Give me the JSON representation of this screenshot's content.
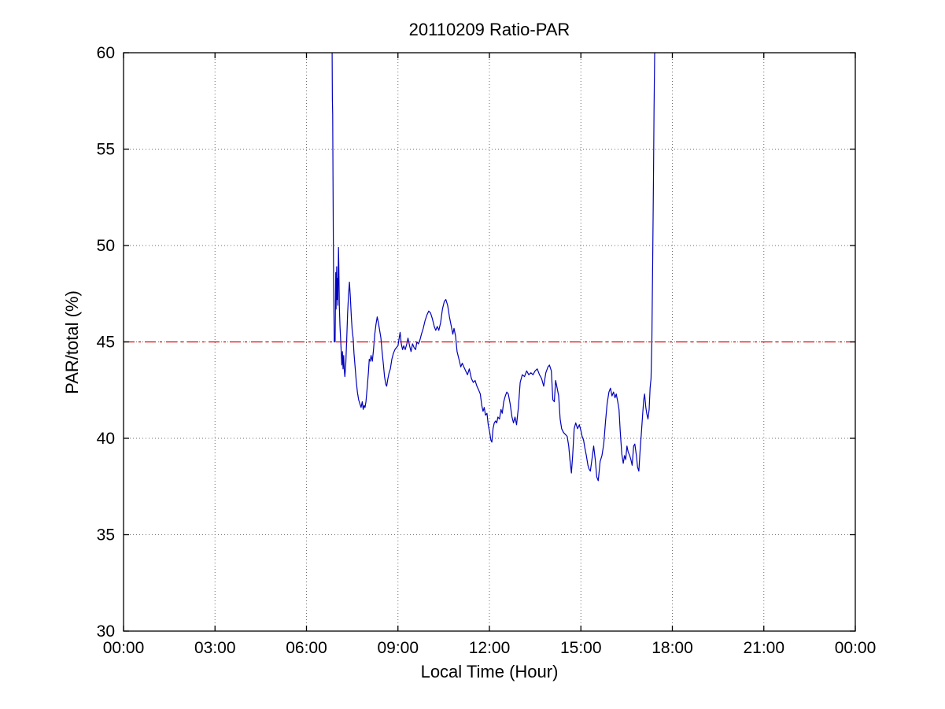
{
  "figure": {
    "background": "#ffffff",
    "axis_color": "#000000",
    "grid_color": "#6e6e6e"
  },
  "chart_data": {
    "type": "line",
    "title": "20110209 Ratio-PAR",
    "xlabel": "Local Time (Hour)",
    "ylabel": "PAR/total (%)",
    "xlim": [
      0,
      24
    ],
    "ylim": [
      30,
      60
    ],
    "x_tick_hours": [
      0,
      3,
      6,
      9,
      12,
      15,
      18,
      21,
      24
    ],
    "x_tick_labels": [
      "00:00",
      "03:00",
      "06:00",
      "09:00",
      "12:00",
      "15:00",
      "18:00",
      "21:00",
      "00:00"
    ],
    "y_ticks": [
      30,
      35,
      40,
      45,
      50,
      55,
      60
    ],
    "grid": "dotted",
    "legend": "none",
    "series": [
      {
        "name": "par-total-ratio",
        "color": "#0000bb",
        "style": "solid",
        "points": [
          [
            6.84,
            60
          ],
          [
            6.85,
            57.6
          ],
          [
            6.86,
            56.8
          ],
          [
            6.87,
            53.5
          ],
          [
            6.88,
            50.5
          ],
          [
            6.89,
            48.0
          ],
          [
            6.9,
            46.6
          ],
          [
            6.91,
            45.0
          ],
          [
            6.94,
            45.0
          ],
          [
            6.96,
            48.6
          ],
          [
            6.97,
            46.7
          ],
          [
            6.99,
            48.9
          ],
          [
            7.0,
            47.2
          ],
          [
            7.02,
            48.3
          ],
          [
            7.03,
            46.9
          ],
          [
            7.05,
            49.9
          ],
          [
            7.06,
            49.0
          ],
          [
            7.08,
            46.8
          ],
          [
            7.1,
            45.8
          ],
          [
            7.13,
            44.8
          ],
          [
            7.16,
            43.8
          ],
          [
            7.18,
            44.5
          ],
          [
            7.2,
            43.6
          ],
          [
            7.22,
            44.3
          ],
          [
            7.24,
            43.5
          ],
          [
            7.26,
            43.2
          ],
          [
            7.29,
            43.9
          ],
          [
            7.32,
            45.2
          ],
          [
            7.35,
            46.5
          ],
          [
            7.38,
            47.5
          ],
          [
            7.41,
            48.1
          ],
          [
            7.44,
            47.3
          ],
          [
            7.47,
            46.3
          ],
          [
            7.5,
            45.6
          ],
          [
            7.53,
            45.2
          ],
          [
            7.56,
            44.4
          ],
          [
            7.59,
            43.8
          ],
          [
            7.63,
            43.0
          ],
          [
            7.67,
            42.4
          ],
          [
            7.71,
            42.0
          ],
          [
            7.75,
            41.8
          ],
          [
            7.79,
            41.6
          ],
          [
            7.83,
            41.9
          ],
          [
            7.86,
            41.5
          ],
          [
            7.89,
            41.7
          ],
          [
            7.92,
            41.6
          ],
          [
            7.95,
            41.9
          ],
          [
            7.99,
            42.6
          ],
          [
            8.03,
            43.4
          ],
          [
            8.06,
            44.1
          ],
          [
            8.09,
            44.0
          ],
          [
            8.12,
            44.3
          ],
          [
            8.16,
            44.0
          ],
          [
            8.2,
            44.6
          ],
          [
            8.24,
            45.4
          ],
          [
            8.28,
            45.9
          ],
          [
            8.32,
            46.3
          ],
          [
            8.36,
            46.0
          ],
          [
            8.4,
            45.6
          ],
          [
            8.44,
            45.2
          ],
          [
            8.48,
            44.5
          ],
          [
            8.52,
            43.9
          ],
          [
            8.56,
            43.2
          ],
          [
            8.6,
            42.8
          ],
          [
            8.63,
            42.7
          ],
          [
            8.67,
            43.1
          ],
          [
            8.71,
            43.4
          ],
          [
            8.75,
            43.6
          ],
          [
            8.8,
            44.1
          ],
          [
            8.85,
            44.4
          ],
          [
            8.9,
            44.6
          ],
          [
            8.95,
            44.7
          ],
          [
            9.0,
            44.8
          ],
          [
            9.04,
            45.2
          ],
          [
            9.07,
            45.5
          ],
          [
            9.11,
            44.9
          ],
          [
            9.15,
            44.6
          ],
          [
            9.19,
            44.8
          ],
          [
            9.24,
            44.6
          ],
          [
            9.29,
            44.9
          ],
          [
            9.33,
            45.2
          ],
          [
            9.38,
            44.8
          ],
          [
            9.43,
            44.5
          ],
          [
            9.48,
            44.9
          ],
          [
            9.53,
            44.7
          ],
          [
            9.58,
            44.6
          ],
          [
            9.62,
            45.0
          ],
          [
            9.67,
            44.9
          ],
          [
            9.72,
            45.1
          ],
          [
            9.77,
            45.4
          ],
          [
            9.83,
            45.7
          ],
          [
            9.89,
            46.1
          ],
          [
            9.95,
            46.4
          ],
          [
            10.01,
            46.6
          ],
          [
            10.07,
            46.5
          ],
          [
            10.13,
            46.2
          ],
          [
            10.19,
            45.8
          ],
          [
            10.24,
            45.6
          ],
          [
            10.29,
            45.8
          ],
          [
            10.34,
            45.6
          ],
          [
            10.4,
            46.0
          ],
          [
            10.46,
            46.7
          ],
          [
            10.52,
            47.1
          ],
          [
            10.57,
            47.2
          ],
          [
            10.63,
            46.9
          ],
          [
            10.69,
            46.3
          ],
          [
            10.75,
            45.8
          ],
          [
            10.8,
            45.4
          ],
          [
            10.84,
            45.7
          ],
          [
            10.89,
            45.3
          ],
          [
            10.94,
            44.5
          ],
          [
            11.0,
            44.1
          ],
          [
            11.06,
            43.7
          ],
          [
            11.11,
            43.9
          ],
          [
            11.16,
            43.7
          ],
          [
            11.22,
            43.5
          ],
          [
            11.28,
            43.3
          ],
          [
            11.34,
            43.6
          ],
          [
            11.41,
            43.1
          ],
          [
            11.47,
            42.9
          ],
          [
            11.53,
            43.0
          ],
          [
            11.59,
            42.7
          ],
          [
            11.65,
            42.5
          ],
          [
            11.7,
            42.3
          ],
          [
            11.75,
            41.7
          ],
          [
            11.79,
            41.4
          ],
          [
            11.83,
            41.6
          ],
          [
            11.87,
            41.2
          ],
          [
            11.92,
            41.3
          ],
          [
            11.96,
            40.7
          ],
          [
            12.01,
            40.3
          ],
          [
            12.05,
            39.9
          ],
          [
            12.08,
            39.8
          ],
          [
            12.12,
            40.5
          ],
          [
            12.16,
            40.8
          ],
          [
            12.2,
            40.9
          ],
          [
            12.24,
            40.8
          ],
          [
            12.28,
            41.1
          ],
          [
            12.33,
            41.0
          ],
          [
            12.38,
            41.5
          ],
          [
            12.42,
            41.3
          ],
          [
            12.47,
            41.9
          ],
          [
            12.52,
            42.2
          ],
          [
            12.57,
            42.4
          ],
          [
            12.62,
            42.3
          ],
          [
            12.68,
            41.8
          ],
          [
            12.74,
            41.1
          ],
          [
            12.79,
            40.8
          ],
          [
            12.84,
            41.1
          ],
          [
            12.89,
            40.7
          ],
          [
            12.95,
            41.6
          ],
          [
            13.01,
            42.9
          ],
          [
            13.08,
            43.3
          ],
          [
            13.15,
            43.2
          ],
          [
            13.22,
            43.5
          ],
          [
            13.29,
            43.3
          ],
          [
            13.36,
            43.4
          ],
          [
            13.43,
            43.3
          ],
          [
            13.5,
            43.5
          ],
          [
            13.57,
            43.6
          ],
          [
            13.64,
            43.3
          ],
          [
            13.71,
            43.1
          ],
          [
            13.78,
            42.7
          ],
          [
            13.85,
            43.4
          ],
          [
            13.92,
            43.7
          ],
          [
            13.97,
            43.8
          ],
          [
            14.03,
            43.5
          ],
          [
            14.08,
            42.0
          ],
          [
            14.13,
            41.9
          ],
          [
            14.17,
            43.0
          ],
          [
            14.21,
            42.7
          ],
          [
            14.27,
            42.2
          ],
          [
            14.32,
            41.0
          ],
          [
            14.37,
            40.5
          ],
          [
            14.43,
            40.3
          ],
          [
            14.49,
            40.2
          ],
          [
            14.55,
            40.1
          ],
          [
            14.6,
            39.6
          ],
          [
            14.64,
            38.9
          ],
          [
            14.69,
            38.2
          ],
          [
            14.73,
            39.1
          ],
          [
            14.78,
            40.5
          ],
          [
            14.83,
            40.8
          ],
          [
            14.89,
            40.5
          ],
          [
            14.95,
            40.7
          ],
          [
            15.0,
            40.4
          ],
          [
            15.04,
            40.1
          ],
          [
            15.09,
            39.9
          ],
          [
            15.13,
            39.5
          ],
          [
            15.18,
            39.1
          ],
          [
            15.23,
            38.6
          ],
          [
            15.27,
            38.4
          ],
          [
            15.31,
            38.3
          ],
          [
            15.37,
            39.0
          ],
          [
            15.42,
            39.6
          ],
          [
            15.47,
            38.9
          ],
          [
            15.52,
            38.0
          ],
          [
            15.57,
            37.8
          ],
          [
            15.63,
            38.8
          ],
          [
            15.69,
            39.1
          ],
          [
            15.75,
            39.7
          ],
          [
            15.81,
            40.9
          ],
          [
            15.86,
            41.8
          ],
          [
            15.92,
            42.4
          ],
          [
            15.97,
            42.6
          ],
          [
            16.02,
            42.2
          ],
          [
            16.07,
            42.4
          ],
          [
            16.12,
            42.1
          ],
          [
            16.16,
            42.3
          ],
          [
            16.21,
            41.9
          ],
          [
            16.25,
            41.5
          ],
          [
            16.29,
            40.4
          ],
          [
            16.34,
            39.2
          ],
          [
            16.39,
            38.7
          ],
          [
            16.43,
            39.1
          ],
          [
            16.47,
            38.9
          ],
          [
            16.51,
            39.6
          ],
          [
            16.55,
            39.3
          ],
          [
            16.6,
            39.1
          ],
          [
            16.64,
            38.9
          ],
          [
            16.68,
            38.6
          ],
          [
            16.73,
            39.6
          ],
          [
            16.77,
            39.7
          ],
          [
            16.82,
            39.1
          ],
          [
            16.86,
            38.5
          ],
          [
            16.9,
            38.3
          ],
          [
            16.94,
            39.3
          ],
          [
            16.98,
            40.2
          ],
          [
            17.02,
            41.1
          ],
          [
            17.06,
            42.0
          ],
          [
            17.09,
            42.3
          ],
          [
            17.13,
            41.6
          ],
          [
            17.16,
            41.3
          ],
          [
            17.2,
            41.0
          ],
          [
            17.24,
            41.5
          ],
          [
            17.27,
            42.6
          ],
          [
            17.3,
            43.1
          ],
          [
            17.33,
            45.2
          ],
          [
            17.36,
            50.0
          ],
          [
            17.38,
            53.5
          ],
          [
            17.4,
            57.0
          ],
          [
            17.42,
            60.0
          ]
        ]
      },
      {
        "name": "reference-line-45",
        "color": "#dd0000",
        "style": "dashdot",
        "points": [
          [
            0,
            45
          ],
          [
            24,
            45
          ]
        ]
      }
    ]
  }
}
